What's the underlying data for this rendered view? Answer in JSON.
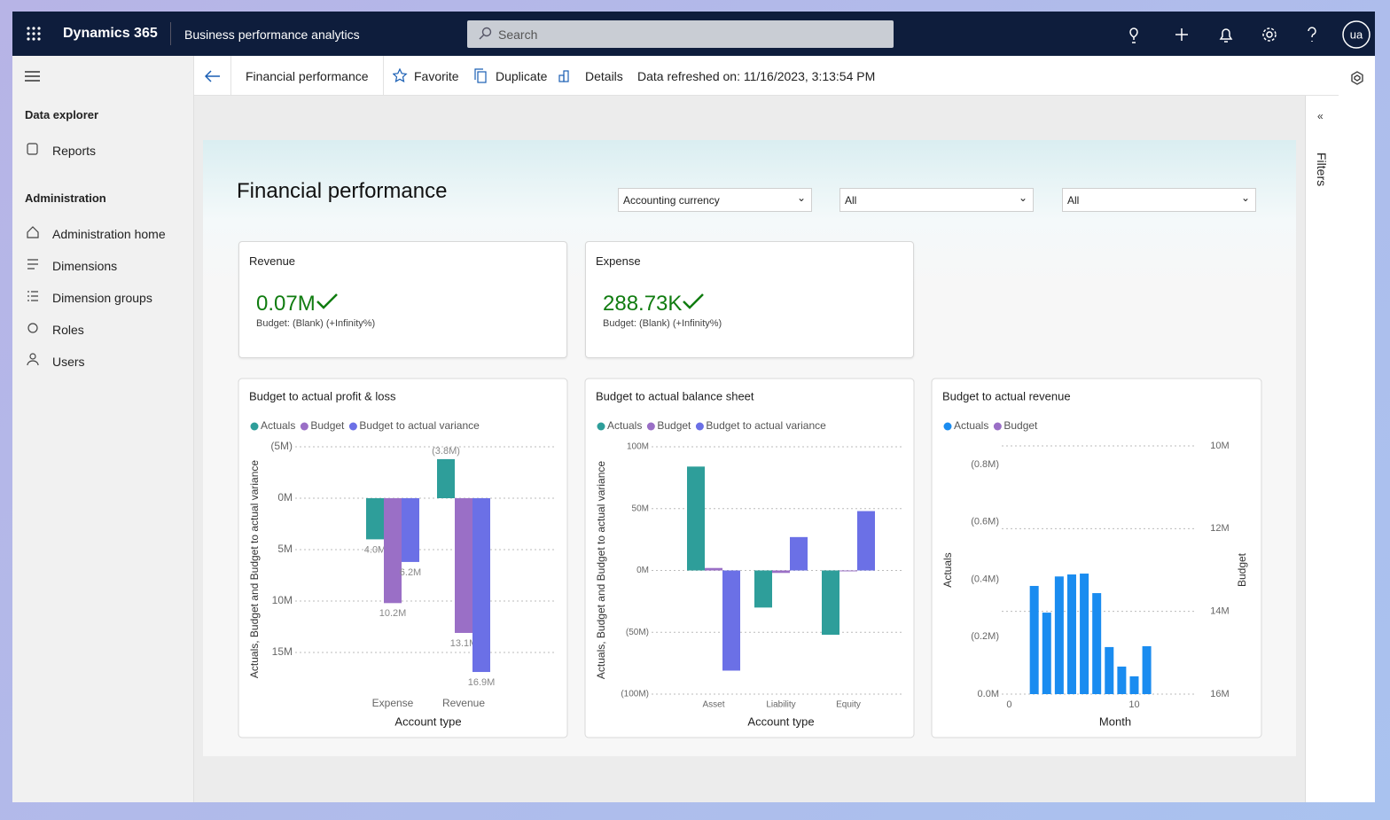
{
  "app": {
    "brand": "Dynamics 365",
    "module": "Business performance analytics",
    "search_placeholder": "Search",
    "avatar": "ua"
  },
  "nav": {
    "sections": [
      {
        "title": "Data explorer",
        "items": [
          "Reports"
        ]
      },
      {
        "title": "Administration",
        "items": [
          "Administration home",
          "Dimensions",
          "Dimension groups",
          "Roles",
          "Users"
        ]
      }
    ]
  },
  "command_bar": {
    "page": "Financial performance",
    "actions": [
      "Favorite",
      "Duplicate",
      "Details"
    ],
    "refresh": "Data refreshed on: 11/16/2023, 3:13:54 PM"
  },
  "filters_pane": "Filters",
  "report": {
    "title": "Financial performance",
    "slicers": [
      "Accounting currency",
      "All",
      "All"
    ],
    "cards": [
      {
        "title": "Revenue",
        "value": "0.07M",
        "subtitle": "Budget: (Blank) (+Infinity%)"
      },
      {
        "title": "Expense",
        "value": "288.73K",
        "subtitle": "Budget: (Blank) (+Infinity%)"
      }
    ]
  },
  "chart_data": [
    {
      "type": "bar",
      "title": "Budget to actual profit & loss",
      "x_label": "Account type",
      "y_label": "Actuals, Budget and Budget to actual variance",
      "categories": [
        "Expense",
        "Revenue"
      ],
      "series": [
        {
          "name": "Actuals",
          "color": "#2e9e9a",
          "values": [
            4.0,
            -3.8
          ],
          "value_labels": [
            "4.0M",
            "(3.8M)"
          ]
        },
        {
          "name": "Budget",
          "color": "#9a6fc6",
          "values": [
            10.2,
            13.1
          ],
          "value_labels": [
            "10.2M",
            "13.1M"
          ]
        },
        {
          "name": "Budget to actual variance",
          "color": "#6b70e6",
          "values": [
            6.2,
            16.9
          ],
          "value_labels": [
            "6.2M",
            "16.9M"
          ]
        }
      ],
      "ylim": [
        17.5,
        -5
      ],
      "yticks": [
        {
          "value": -5,
          "label": "(5M)"
        },
        {
          "value": 0,
          "label": "0M"
        },
        {
          "value": 5,
          "label": "5M"
        },
        {
          "value": 10,
          "label": "10M"
        },
        {
          "value": 15,
          "label": "15M"
        }
      ],
      "grid": "y"
    },
    {
      "type": "bar",
      "title": "Budget to actual balance sheet",
      "x_label": "Account type",
      "y_label": "Actuals, Budget and Budget to actual variance",
      "categories": [
        "Asset",
        "Liability",
        "Equity"
      ],
      "series": [
        {
          "name": "Actuals",
          "color": "#2e9e9a",
          "values": [
            84,
            -30,
            -52
          ]
        },
        {
          "name": "Budget",
          "color": "#9a6fc6",
          "values": [
            2,
            -2,
            0
          ]
        },
        {
          "name": "Budget to actual variance",
          "color": "#6b70e6",
          "values": [
            -81,
            27,
            48
          ]
        }
      ],
      "ylim": [
        -100,
        100
      ],
      "yticks": [
        {
          "value": 100,
          "label": "100M"
        },
        {
          "value": 50,
          "label": "50M"
        },
        {
          "value": 0,
          "label": "0M"
        },
        {
          "value": -50,
          "label": "(50M)"
        },
        {
          "value": -100,
          "label": "(100M)"
        }
      ],
      "grid": "y"
    },
    {
      "type": "bar",
      "title": "Budget to actual revenue",
      "x_label": "Month",
      "y_label": "Actuals",
      "y2_label": "Budget",
      "x": [
        2,
        3,
        4,
        5,
        6,
        7,
        8,
        9,
        10,
        11
      ],
      "xlim": [
        -0.6,
        15
      ],
      "xticks": [
        0,
        10
      ],
      "series": [
        {
          "name": "Actuals",
          "color": "#1a8cf0",
          "values": [
            -0.377,
            -0.284,
            -0.41,
            -0.417,
            -0.42,
            -0.352,
            -0.164,
            -0.096,
            -0.062,
            -0.167
          ]
        },
        {
          "name": "Budget",
          "color": "#9a6fc6",
          "axis": "y2",
          "values": [
            null,
            null,
            null,
            null,
            null,
            null,
            null,
            null,
            null,
            null
          ]
        }
      ],
      "ylim": [
        0,
        -0.865
      ],
      "yticks": [
        {
          "value": -0.8,
          "label": "(0.8M)"
        },
        {
          "value": -0.6,
          "label": "(0.6M)"
        },
        {
          "value": -0.4,
          "label": "(0.4M)"
        },
        {
          "value": -0.2,
          "label": "(0.2M)"
        },
        {
          "value": 0,
          "label": "0.0M"
        }
      ],
      "y2lim": [
        16,
        10
      ],
      "y2ticks": [
        {
          "value": 10,
          "label": "10M"
        },
        {
          "value": 12,
          "label": "12M"
        },
        {
          "value": 14,
          "label": "14M"
        },
        {
          "value": 16,
          "label": "16M"
        }
      ],
      "grid": "y2"
    }
  ]
}
